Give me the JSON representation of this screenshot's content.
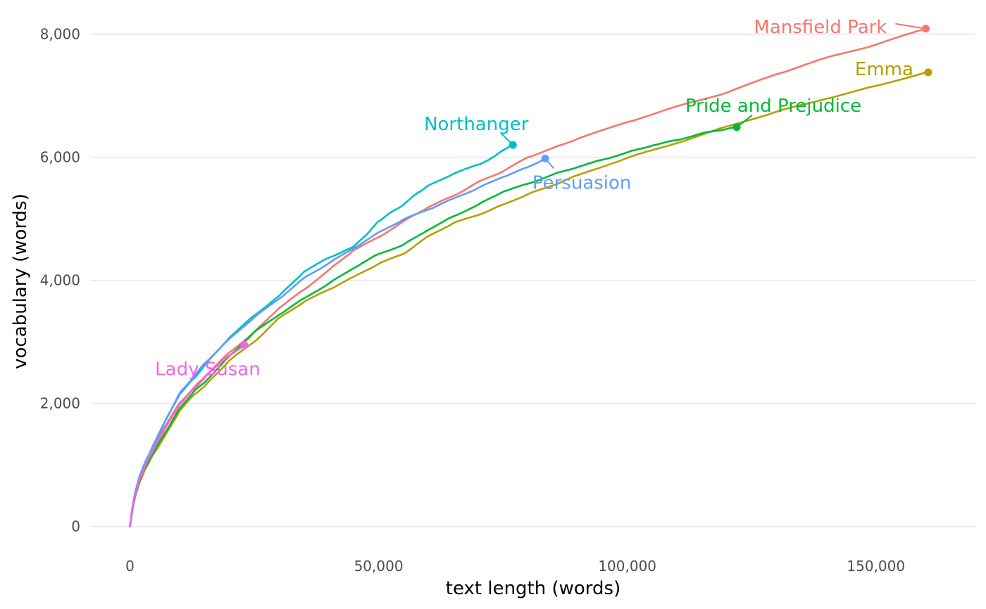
{
  "chart_data": {
    "type": "line",
    "xlabel": "text length (words)",
    "ylabel": "vocabulary (words)",
    "xlim": [
      -8000,
      170000
    ],
    "ylim": [
      -300,
      8350
    ],
    "xticks": [
      0,
      50000,
      100000,
      150000
    ],
    "yticks": [
      0,
      2000,
      4000,
      6000,
      8000
    ],
    "xtick_labels": [
      "0",
      "50,000",
      "100,000",
      "150,000"
    ],
    "ytick_labels": [
      "0",
      "2,000",
      "4,000",
      "6,000",
      "8,000"
    ],
    "grid": true,
    "legend": "none",
    "series": [
      {
        "name": "Mansfield Park",
        "color": "#F8766D",
        "x": [
          0,
          500,
          1000,
          2000,
          3000,
          4000,
          5000,
          7000,
          10000,
          13000,
          15000,
          20000,
          25000,
          30000,
          35000,
          40000,
          45000,
          50000,
          55000,
          60000,
          65000,
          70000,
          75000,
          80000,
          85000,
          90000,
          100000,
          110000,
          120000,
          130000,
          140000,
          150000,
          160000
        ],
        "y": [
          0,
          300,
          520,
          800,
          1000,
          1170,
          1330,
          1620,
          2010,
          2270,
          2430,
          2830,
          3160,
          3550,
          3850,
          4170,
          4490,
          4700,
          4960,
          5190,
          5370,
          5600,
          5770,
          6000,
          6150,
          6300,
          6570,
          6830,
          7050,
          7350,
          7620,
          7830,
          8090
        ]
      },
      {
        "name": "Emma",
        "color": "#B79F00",
        "x": [
          0,
          500,
          1000,
          2000,
          3000,
          4000,
          5000,
          7000,
          10000,
          13000,
          15000,
          20000,
          25000,
          30000,
          35000,
          40000,
          45000,
          50000,
          55000,
          60000,
          65000,
          70000,
          75000,
          80000,
          85000,
          90000,
          100000,
          110000,
          120000,
          130000,
          140000,
          150000,
          160000
        ],
        "y": [
          0,
          270,
          470,
          730,
          920,
          1070,
          1210,
          1470,
          1880,
          2150,
          2280,
          2700,
          3000,
          3390,
          3650,
          3850,
          4060,
          4270,
          4430,
          4720,
          4930,
          5060,
          5230,
          5400,
          5540,
          5710,
          5990,
          6230,
          6500,
          6740,
          6950,
          7160,
          7380
        ]
      },
      {
        "name": "Pride and Prejudice",
        "color": "#00BA38",
        "x": [
          0,
          500,
          1000,
          2000,
          3000,
          4000,
          5000,
          7000,
          10000,
          13000,
          15000,
          20000,
          25000,
          30000,
          35000,
          40000,
          45000,
          50000,
          55000,
          60000,
          65000,
          70000,
          75000,
          80000,
          85000,
          90000,
          95000,
          100000,
          105000,
          110000,
          115000,
          120000,
          122000
        ],
        "y": [
          0,
          280,
          480,
          760,
          950,
          1100,
          1240,
          1510,
          1920,
          2210,
          2340,
          2770,
          3160,
          3440,
          3710,
          3950,
          4200,
          4430,
          4580,
          4820,
          5040,
          5230,
          5440,
          5570,
          5720,
          5840,
          5960,
          6080,
          6190,
          6280,
          6390,
          6460,
          6490
        ]
      },
      {
        "name": "Northanger",
        "color": "#00BFC4",
        "x": [
          0,
          500,
          1000,
          2000,
          3000,
          4000,
          5000,
          7000,
          10000,
          13000,
          15000,
          20000,
          25000,
          30000,
          35000,
          40000,
          45000,
          48000,
          50000,
          52000,
          55000,
          58000,
          60000,
          65000,
          70000,
          72000,
          74000,
          77000
        ],
        "y": [
          0,
          310,
          540,
          830,
          1030,
          1200,
          1370,
          1700,
          2150,
          2420,
          2620,
          3070,
          3430,
          3750,
          4140,
          4370,
          4550,
          4780,
          4960,
          5080,
          5230,
          5430,
          5540,
          5730,
          5880,
          5950,
          6060,
          6200
        ]
      },
      {
        "name": "Persuasion",
        "color": "#619CFF",
        "x": [
          0,
          500,
          1000,
          2000,
          3000,
          4000,
          5000,
          7000,
          10000,
          13000,
          15000,
          20000,
          25000,
          30000,
          35000,
          40000,
          45000,
          50000,
          55000,
          60000,
          65000,
          70000,
          75000,
          80000,
          83500
        ],
        "y": [
          0,
          310,
          540,
          830,
          1030,
          1200,
          1370,
          1700,
          2170,
          2450,
          2650,
          3050,
          3400,
          3700,
          4040,
          4280,
          4520,
          4780,
          4990,
          5150,
          5330,
          5500,
          5680,
          5840,
          5980
        ]
      },
      {
        "name": "Lady Susan",
        "color": "#F564E3",
        "x": [
          0,
          500,
          1000,
          2000,
          3000,
          4000,
          5000,
          7000,
          10000,
          13000,
          15000,
          18000,
          20000,
          23000
        ],
        "y": [
          0,
          290,
          500,
          780,
          980,
          1150,
          1300,
          1580,
          1980,
          2250,
          2420,
          2650,
          2780,
          2950
        ]
      }
    ],
    "annotations": [
      {
        "text": "Mansfield Park",
        "color": "#F8766D",
        "x": 160000,
        "y": 8090
      },
      {
        "text": "Emma",
        "color": "#B79F00",
        "x": 160500,
        "y": 7380
      },
      {
        "text": "Pride and Prejudice",
        "color": "#00BA38",
        "x": 122000,
        "y": 6490
      },
      {
        "text": "Northanger",
        "color": "#00BFC4",
        "x": 77000,
        "y": 6200
      },
      {
        "text": "Persuasion",
        "color": "#619CFF",
        "x": 83500,
        "y": 5980
      },
      {
        "text": "Lady Susan",
        "color": "#F564E3",
        "x": 23000,
        "y": 2950
      }
    ]
  }
}
